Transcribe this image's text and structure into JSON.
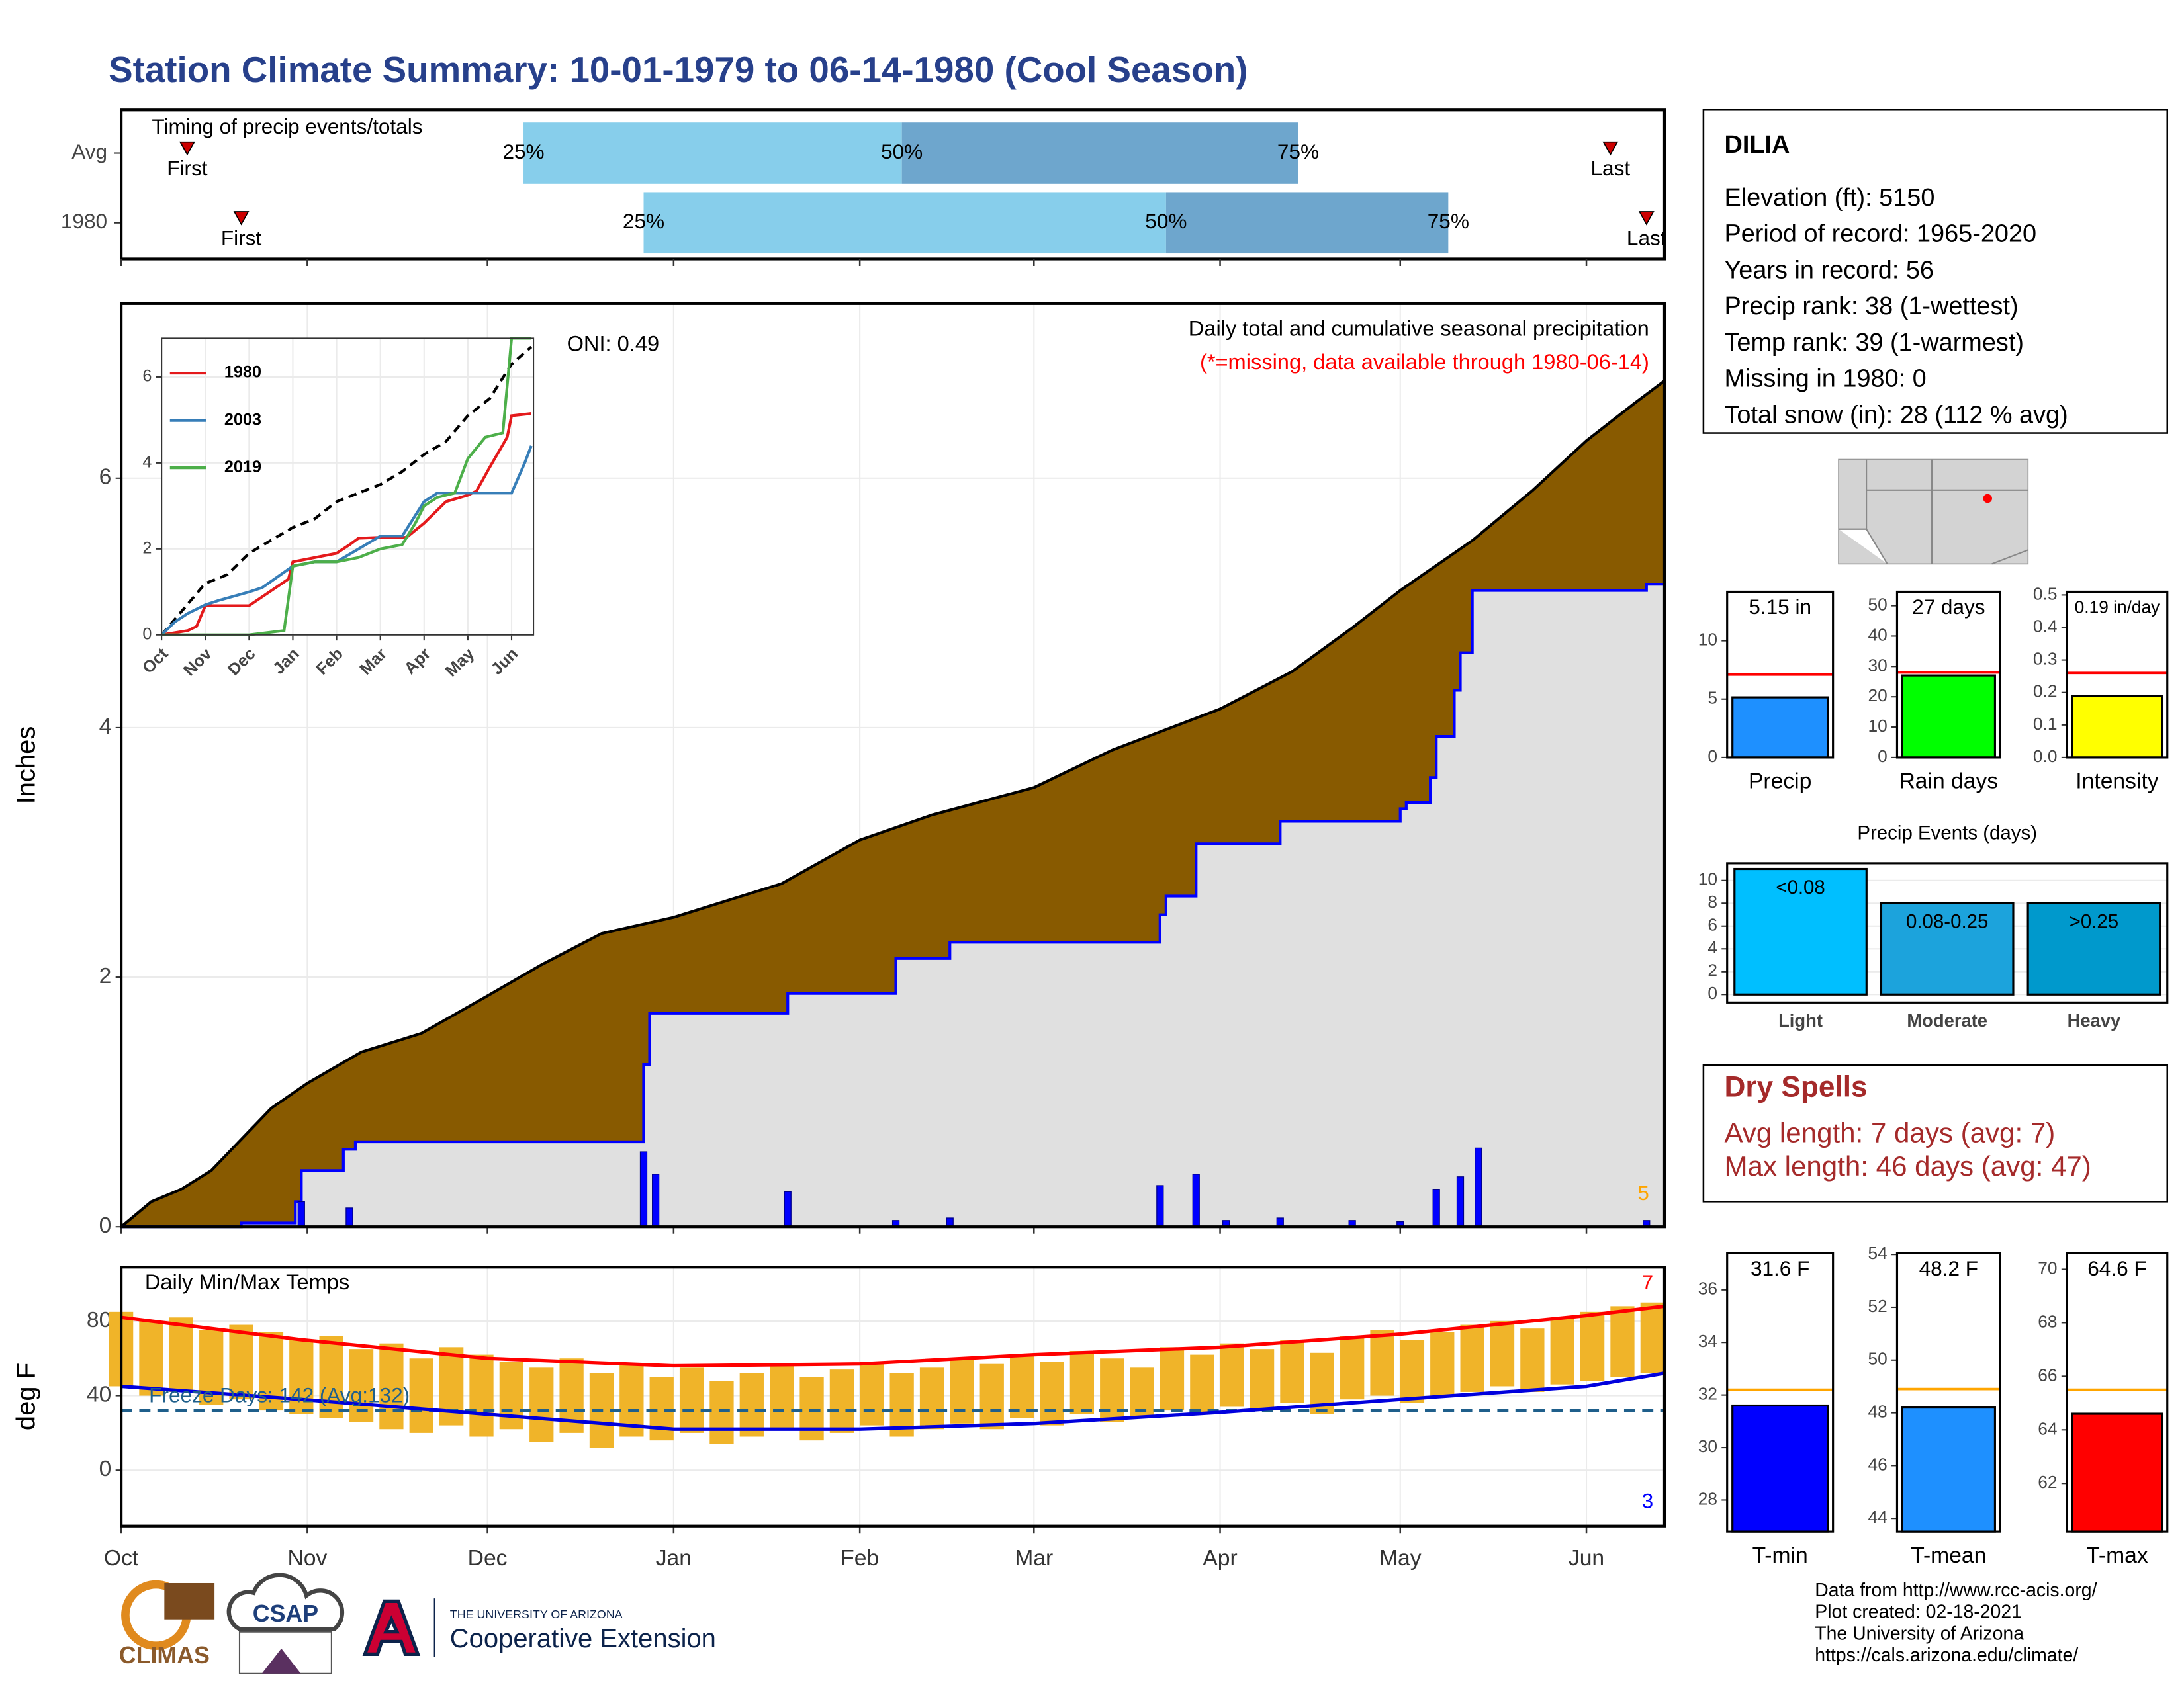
{
  "title": "Station Climate Summary: 10-01-1979 to 06-14-1980 (Cool Season)",
  "station": {
    "name": "DILIA",
    "lines": [
      "Elevation (ft): 5150",
      "Period of record: 1965-2020",
      "Years in record: 56",
      "Precip rank: 38 (1-wettest)",
      "Temp rank: 39 (1-warmest)",
      "Missing in 1980: 0",
      "Total snow (in): 28 (112 % avg)"
    ]
  },
  "dry_spells": {
    "title": "Dry Spells",
    "lines": [
      "Avg length: 7 days (avg: 7)",
      "Max length: 46 days (avg: 47)"
    ]
  },
  "footer": [
    "Data from http://www.rcc-acis.org/",
    "Plot created: 02-18-2021",
    "The University of Arizona",
    "https://cals.arizona.edu/climate/"
  ],
  "logos": [
    "CLIMAS",
    "CSAP",
    "THE UNIVERSITY OF ARIZONA",
    "Cooperative Extension"
  ],
  "chart_data": [
    {
      "type": "timing",
      "title": "Timing of precip events/totals",
      "xlim": [
        0,
        257
      ],
      "colors": [
        "#87ceeb",
        "#6ea6cd"
      ],
      "marker_color": "#cc0000",
      "quantile_labels": [
        "25%",
        "50%",
        "75%"
      ],
      "first_label": "First",
      "last_label": "Last",
      "rows": [
        {
          "name": "Avg",
          "first": 11,
          "q25": 67,
          "q50": 130,
          "q75": 196,
          "last": 248
        },
        {
          "name": "1980",
          "first": 20,
          "q25": 87,
          "q50": 174,
          "q75": 221,
          "last": 254
        }
      ]
    },
    {
      "type": "cumulative",
      "title": "Daily total and cumulative seasonal precipitation",
      "subtitle": "(*=missing, data available through 1980-06-14)",
      "annotation": "ONI: 0.49",
      "corner_label": "5",
      "ylabel": "Inches",
      "xlim": [
        0,
        257
      ],
      "ylim": [
        0,
        7.4
      ],
      "yticks": [
        0,
        2,
        4,
        6
      ],
      "grid": true,
      "average": {
        "color": "#885a00",
        "x": [
          0,
          5,
          10,
          15,
          20,
          25,
          31,
          40,
          50,
          61,
          70,
          80,
          92,
          100,
          110,
          123,
          135,
          152,
          165,
          183,
          195,
          205,
          213,
          225,
          235,
          244,
          252,
          257
        ],
        "values": [
          0,
          0.2,
          0.3,
          0.45,
          0.7,
          0.95,
          1.15,
          1.4,
          1.55,
          1.85,
          2.1,
          2.35,
          2.48,
          2.6,
          2.75,
          3.1,
          3.3,
          3.52,
          3.82,
          4.15,
          4.45,
          4.8,
          5.1,
          5.5,
          5.9,
          6.3,
          6.6,
          6.78
        ]
      },
      "cumulative": {
        "color": "#0000ff",
        "fill": "#e0e0e0",
        "x": [
          0,
          20,
          20,
          29,
          29,
          30,
          30,
          37,
          37,
          39,
          39,
          87,
          87,
          88,
          88,
          111,
          111,
          129,
          129,
          138,
          138,
          173,
          173,
          174,
          174,
          179,
          179,
          193,
          193,
          213,
          213,
          214,
          214,
          218,
          218,
          219,
          219,
          222,
          222,
          223,
          223,
          225,
          225,
          254,
          254,
          257
        ],
        "values": [
          0,
          0,
          0.03,
          0.03,
          0.2,
          0.2,
          0.45,
          0.45,
          0.62,
          0.62,
          0.68,
          0.68,
          1.3,
          1.3,
          1.71,
          1.71,
          1.87,
          1.87,
          2.15,
          2.15,
          2.28,
          2.28,
          2.5,
          2.5,
          2.65,
          2.65,
          3.07,
          3.07,
          3.25,
          3.25,
          3.35,
          3.35,
          3.4,
          3.4,
          3.6,
          3.6,
          3.93,
          3.93,
          4.3,
          4.3,
          4.6,
          4.6,
          5.1,
          5.1,
          5.15,
          5.15
        ]
      },
      "daily": {
        "color": "#0000ff",
        "x": [
          30,
          38,
          87,
          89,
          111,
          129,
          138,
          173,
          179,
          184,
          193,
          205,
          213,
          219,
          223,
          226,
          254
        ],
        "values": [
          0.2,
          0.15,
          0.6,
          0.42,
          0.28,
          0.05,
          0.07,
          0.33,
          0.42,
          0.05,
          0.07,
          0.05,
          0.04,
          0.3,
          0.4,
          0.63,
          0.05
        ]
      }
    },
    {
      "type": "line",
      "xlim": [
        0,
        8.5
      ],
      "ylim": [
        0,
        6.9
      ],
      "yticks": [
        0,
        2,
        4,
        6
      ],
      "xticks": [
        {
          "value": 0,
          "label": "Oct"
        },
        {
          "value": 1,
          "label": "Nov"
        },
        {
          "value": 2,
          "label": "Dec"
        },
        {
          "value": 3,
          "label": "Jan"
        },
        {
          "value": 4,
          "label": "Feb"
        },
        {
          "value": 5,
          "label": "Mar"
        },
        {
          "value": 6,
          "label": "Apr"
        },
        {
          "value": 7,
          "label": "May"
        },
        {
          "value": 8,
          "label": "Jun"
        }
      ],
      "series": [
        {
          "name": "1980",
          "color": "#e41a1c",
          "x": [
            0,
            0.6,
            0.8,
            1,
            2,
            2.9,
            3,
            3.5,
            4,
            4.3,
            4.5,
            5,
            5.6,
            6,
            6.5,
            7,
            7.2,
            7.5,
            7.9,
            8,
            8.45
          ],
          "values": [
            0,
            0.1,
            0.2,
            0.68,
            0.68,
            1.3,
            1.7,
            1.8,
            1.9,
            2.1,
            2.25,
            2.27,
            2.27,
            2.6,
            3.1,
            3.25,
            3.35,
            3.9,
            4.6,
            5.1,
            5.15
          ]
        },
        {
          "name": "2003",
          "color": "#377eb8",
          "x": [
            0,
            0.3,
            0.6,
            1,
            1.3,
            2,
            2.3,
            3,
            3.5,
            4,
            4.5,
            5,
            5.5,
            6,
            6.3,
            7,
            7.5,
            8,
            8.3,
            8.45
          ],
          "values": [
            0,
            0.3,
            0.5,
            0.7,
            0.8,
            1,
            1.1,
            1.6,
            1.7,
            1.7,
            2,
            2.3,
            2.3,
            3.1,
            3.3,
            3.3,
            3.3,
            3.3,
            4,
            4.4
          ]
        },
        {
          "name": "2019",
          "color": "#4daf4a",
          "x": [
            0,
            1,
            2,
            2.8,
            3,
            3.5,
            4,
            4.5,
            5,
            5.5,
            5.8,
            6,
            6.3,
            6.7,
            7,
            7.4,
            7.8,
            8,
            8.45
          ],
          "values": [
            0,
            0,
            0,
            0.1,
            1.6,
            1.7,
            1.7,
            1.8,
            2,
            2.1,
            2.6,
            3,
            3.2,
            3.3,
            4.1,
            4.6,
            4.7,
            6.9,
            6.9
          ]
        }
      ],
      "average": {
        "color": "#000000",
        "x": [
          0,
          0.5,
          1,
          1.5,
          2,
          2.5,
          3,
          3.5,
          4,
          4.5,
          5,
          5.5,
          6,
          6.5,
          7,
          7.5,
          8,
          8.45
        ],
        "values": [
          0,
          0.6,
          1.2,
          1.4,
          1.9,
          2.2,
          2.5,
          2.7,
          3.1,
          3.3,
          3.5,
          3.8,
          4.2,
          4.5,
          5.1,
          5.5,
          6.3,
          6.7
        ]
      }
    },
    {
      "type": "range",
      "title": "Daily Min/Max Temps",
      "annotation": "Freeze Days: 142 (Avg:132)",
      "max_label": "7",
      "min_label": "3",
      "ylabel": "deg F",
      "xlim": [
        0,
        257
      ],
      "ylim": [
        -30,
        109
      ],
      "yticks": [
        0,
        40,
        80
      ],
      "xticks": [
        {
          "value": 0,
          "label": "Oct"
        },
        {
          "value": 31,
          "label": "Nov"
        },
        {
          "value": 61,
          "label": "Dec"
        },
        {
          "value": 92,
          "label": "Jan"
        },
        {
          "value": 123,
          "label": "Feb"
        },
        {
          "value": 152,
          "label": "Mar"
        },
        {
          "value": 183,
          "label": "Apr"
        },
        {
          "value": 213,
          "label": "May"
        },
        {
          "value": 244,
          "label": "Jun"
        }
      ],
      "grid": true,
      "freeze": 32,
      "freeze_color": "#1f5f8b",
      "bar_color": "#f0b429",
      "x": [
        0,
        5,
        10,
        15,
        20,
        25,
        30,
        35,
        40,
        45,
        50,
        55,
        60,
        65,
        70,
        75,
        80,
        85,
        90,
        95,
        100,
        105,
        110,
        115,
        120,
        125,
        130,
        135,
        140,
        145,
        150,
        155,
        160,
        165,
        170,
        175,
        180,
        185,
        190,
        195,
        200,
        205,
        210,
        215,
        220,
        225,
        230,
        235,
        240,
        245,
        250,
        255
      ],
      "highs": [
        85,
        80,
        82,
        75,
        78,
        74,
        70,
        72,
        65,
        68,
        60,
        66,
        62,
        58,
        55,
        60,
        52,
        57,
        50,
        55,
        48,
        52,
        56,
        50,
        54,
        58,
        52,
        55,
        60,
        57,
        62,
        58,
        64,
        60,
        55,
        66,
        62,
        68,
        65,
        70,
        63,
        72,
        75,
        70,
        74,
        78,
        80,
        76,
        82,
        85,
        88,
        90
      ],
      "lows": [
        45,
        40,
        42,
        35,
        38,
        32,
        30,
        28,
        26,
        22,
        20,
        24,
        18,
        22,
        15,
        20,
        12,
        18,
        16,
        20,
        14,
        18,
        22,
        16,
        20,
        24,
        18,
        22,
        25,
        22,
        28,
        24,
        30,
        26,
        28,
        32,
        30,
        34,
        32,
        36,
        30,
        38,
        40,
        36,
        40,
        42,
        45,
        42,
        46,
        48,
        50,
        52
      ],
      "avg_max": {
        "color": "#ff0000",
        "x": [
          0,
          30,
          61,
          92,
          123,
          152,
          183,
          213,
          244,
          257
        ],
        "values": [
          82,
          70,
          60,
          56,
          57,
          62,
          66,
          73,
          83,
          88
        ]
      },
      "avg_min": {
        "color": "#0000dd",
        "x": [
          0,
          30,
          61,
          92,
          123,
          152,
          183,
          213,
          244,
          257
        ],
        "values": [
          45,
          38,
          30,
          22,
          22,
          25,
          31,
          38,
          45,
          52
        ]
      }
    },
    {
      "type": "bar",
      "categories": [
        "Precip"
      ],
      "values": [
        5.15
      ],
      "value_labels": [
        "5.15 in"
      ],
      "color": "#1e90ff",
      "reference": 7.1,
      "reference_color": "#ff0000",
      "ylim": [
        0,
        14.2
      ],
      "yticks": [
        0,
        5,
        10
      ]
    },
    {
      "type": "bar",
      "categories": [
        "Rain days"
      ],
      "values": [
        27
      ],
      "value_labels": [
        "27 days"
      ],
      "color": "#00ff00",
      "reference": 28,
      "reference_color": "#ff0000",
      "ylim": [
        0,
        54.6
      ],
      "yticks": [
        0,
        10,
        20,
        30,
        40,
        50
      ]
    },
    {
      "type": "bar",
      "categories": [
        "Intensity"
      ],
      "values": [
        0.19
      ],
      "value_labels": [
        "0.19 in/day"
      ],
      "color": "#ffff00",
      "reference": 0.26,
      "reference_color": "#ff0000",
      "ylim": [
        0,
        0.51
      ],
      "yticks": [
        {
          "value": 0,
          "label": "0.0"
        },
        0.1,
        0.2,
        0.3,
        0.4,
        0.5
      ]
    },
    {
      "type": "bar",
      "title": "Precip Events (days)",
      "categories": [
        "Light",
        "Moderate",
        "Heavy"
      ],
      "bar_labels": [
        "<0.08",
        "0.08-0.25",
        ">0.25"
      ],
      "values": [
        11,
        8,
        8
      ],
      "colors": [
        "#00bfff",
        "#1ca3dc",
        "#0099cc"
      ],
      "ylim": [
        -0.7,
        11.5
      ],
      "yticks": [
        0,
        2,
        4,
        6,
        8,
        10
      ],
      "grid": true
    },
    {
      "type": "bar",
      "categories": [
        "T-min"
      ],
      "values": [
        31.6
      ],
      "value_labels": [
        "31.6 F"
      ],
      "color": "#0000ff",
      "reference": 32.2,
      "reference_color": "#ffa500",
      "ylim": [
        26.8,
        37.4
      ],
      "yticks": [
        28,
        30,
        32,
        34,
        36
      ]
    },
    {
      "type": "bar",
      "categories": [
        "T-mean"
      ],
      "values": [
        48.2
      ],
      "value_labels": [
        "48.2 F"
      ],
      "color": "#1e90ff",
      "reference": 48.9,
      "reference_color": "#ffa500",
      "ylim": [
        43.5,
        54.05
      ],
      "yticks": [
        44,
        46,
        48,
        50,
        52,
        54
      ]
    },
    {
      "type": "bar",
      "categories": [
        "T-max"
      ],
      "values": [
        64.6
      ],
      "value_labels": [
        "64.6 F"
      ],
      "color": "#ff0000",
      "reference": 65.5,
      "reference_color": "#ffa500",
      "ylim": [
        60.2,
        70.6
      ],
      "yticks": [
        62,
        64,
        66,
        68,
        70
      ]
    }
  ]
}
